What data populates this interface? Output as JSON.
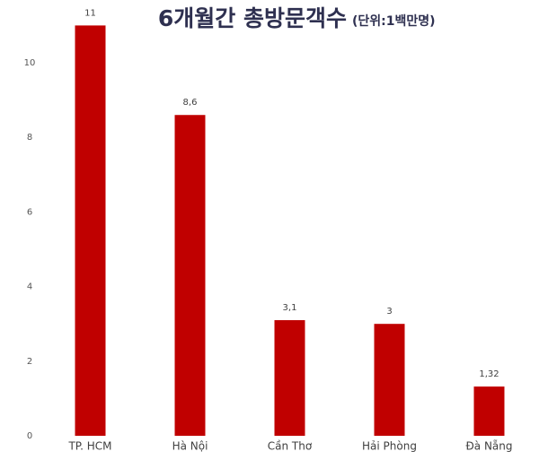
{
  "chart_data": {
    "type": "bar",
    "title": "6개월간 총방문객수",
    "subtitle": "(단위:1백만명)",
    "categories": [
      "TP. HCM",
      "Hà Nội",
      "Cần Thơ",
      "Hải Phòng",
      "Đà Nẵng"
    ],
    "values": [
      11,
      8.6,
      3.1,
      3,
      1.32
    ],
    "value_labels": [
      "11",
      "8,6",
      "3,1",
      "3",
      "1,32"
    ],
    "color": "#c00000",
    "ylim": [
      0,
      11.5
    ],
    "yticks": [
      0,
      2,
      4,
      6,
      8,
      10
    ],
    "grid": false
  }
}
